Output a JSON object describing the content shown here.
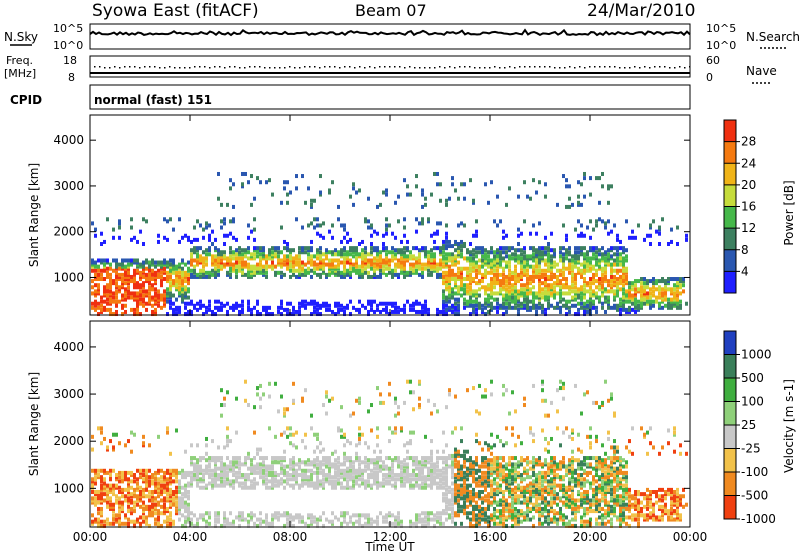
{
  "header": {
    "station": "Syowa East (fitACF)",
    "beam": "Beam 07",
    "date": "24/Mar/2010"
  },
  "noise_panel": {
    "left_label": "N.Sky",
    "right_label": "N.Search",
    "tick_top": "10^5",
    "tick_bottom": "10^0"
  },
  "freq_panel": {
    "left_label_1": "Freq.",
    "left_label_2": "[MHz]",
    "left_tick_top": "18",
    "left_tick_bottom": "8",
    "right_label": "Nave",
    "right_tick_top": "60",
    "right_tick_bottom": "0"
  },
  "cpid_panel": {
    "label": "CPID",
    "value": "normal (fast) 151"
  },
  "chart_data": [
    {
      "type": "heatmap",
      "name": "power",
      "ylabel": "Slant Range [km]",
      "ylim": [
        180,
        4550
      ],
      "yticks": [
        "1000",
        "2000",
        "3000",
        "4000"
      ],
      "xlim": [
        "00:00",
        "24:00"
      ],
      "colorbar_label": "Power [dB]",
      "colorbar_ticks": [
        "4",
        "8",
        "12",
        "16",
        "20",
        "24",
        "28"
      ],
      "colorbar_colors": [
        "#1f1fff",
        "#2a57b0",
        "#3d8060",
        "#46b84a",
        "#c6dc3c",
        "#f0b418",
        "#f57a10",
        "#f03010"
      ]
    },
    {
      "type": "heatmap",
      "name": "velocity",
      "ylabel": "Slant Range [km]",
      "ylim": [
        180,
        4550
      ],
      "yticks": [
        "1000",
        "2000",
        "3000",
        "4000"
      ],
      "xlabel": "Time UT",
      "xticks": [
        "00:00",
        "04:00",
        "08:00",
        "12:00",
        "16:00",
        "20:00",
        "00:00"
      ],
      "colorbar_label": "Velocity [m s-1]",
      "colorbar_ticks": [
        "1000",
        "500",
        "100",
        "25",
        "-25",
        "-100",
        "-500",
        "-1000"
      ],
      "colorbar_colors": [
        "#2040c0",
        "#3a7f5a",
        "#3fae3f",
        "#8fd07a",
        "#c8c8c8",
        "#f2c24a",
        "#f08a20",
        "#f04010"
      ]
    }
  ]
}
